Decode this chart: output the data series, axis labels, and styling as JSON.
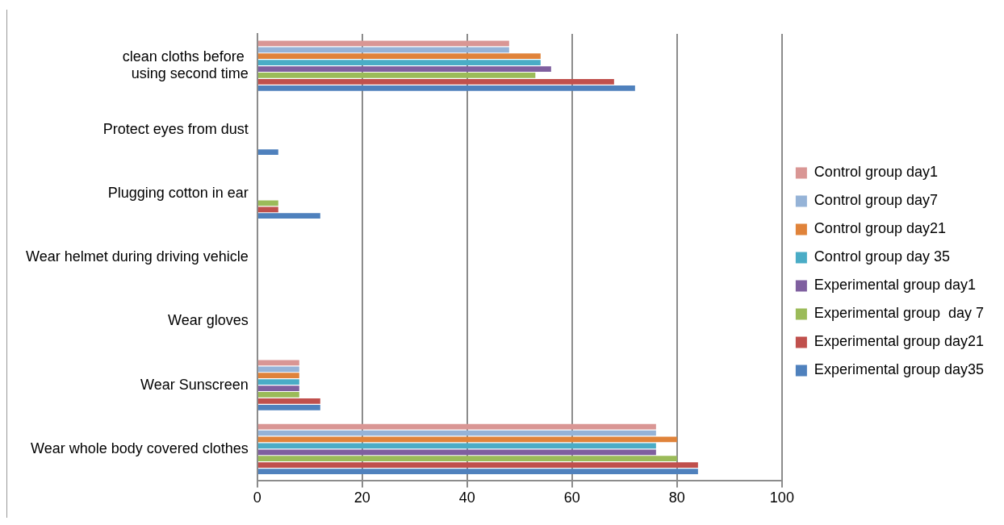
{
  "chart_data": {
    "type": "bar",
    "orientation": "horizontal",
    "categories": [
      "clean cloths before  using second time",
      "Protect eyes from dust",
      "Plugging cotton in ear",
      "Wear helmet during driving vehicle",
      "Wear gloves",
      "Wear Sunscreen",
      "Wear whole body covered clothes"
    ],
    "series": [
      {
        "name": "Control group day1",
        "color": "#d99694",
        "values": [
          48,
          0,
          0,
          0,
          0,
          8,
          76
        ]
      },
      {
        "name": "Control group day7",
        "color": "#95b3d7",
        "values": [
          48,
          0,
          0,
          0,
          0,
          8,
          76
        ]
      },
      {
        "name": "Control group day21",
        "color": "#e0833a",
        "values": [
          54,
          0,
          0,
          0,
          0,
          8,
          80
        ]
      },
      {
        "name": "Control group day 35",
        "color": "#4aacc6",
        "values": [
          54,
          0,
          0,
          0,
          0,
          8,
          76
        ]
      },
      {
        "name": "Experimental group day1",
        "color": "#7f5f9f",
        "values": [
          56,
          0,
          0,
          0,
          0,
          8,
          76
        ]
      },
      {
        "name": "Experimental group  day 7",
        "color": "#9bbb59",
        "values": [
          53,
          0,
          4,
          0,
          0,
          8,
          80
        ]
      },
      {
        "name": "Experimental group day21",
        "color": "#c0504d",
        "values": [
          68,
          0,
          4,
          0,
          0,
          12,
          84
        ]
      },
      {
        "name": "Experimental group day35",
        "color": "#4f81bd",
        "values": [
          72,
          4,
          12,
          0,
          0,
          12,
          84
        ]
      }
    ],
    "xlim": [
      0,
      100
    ],
    "xticks": [
      0,
      20,
      40,
      60,
      80,
      100
    ],
    "grid": "x",
    "legend": "right"
  }
}
